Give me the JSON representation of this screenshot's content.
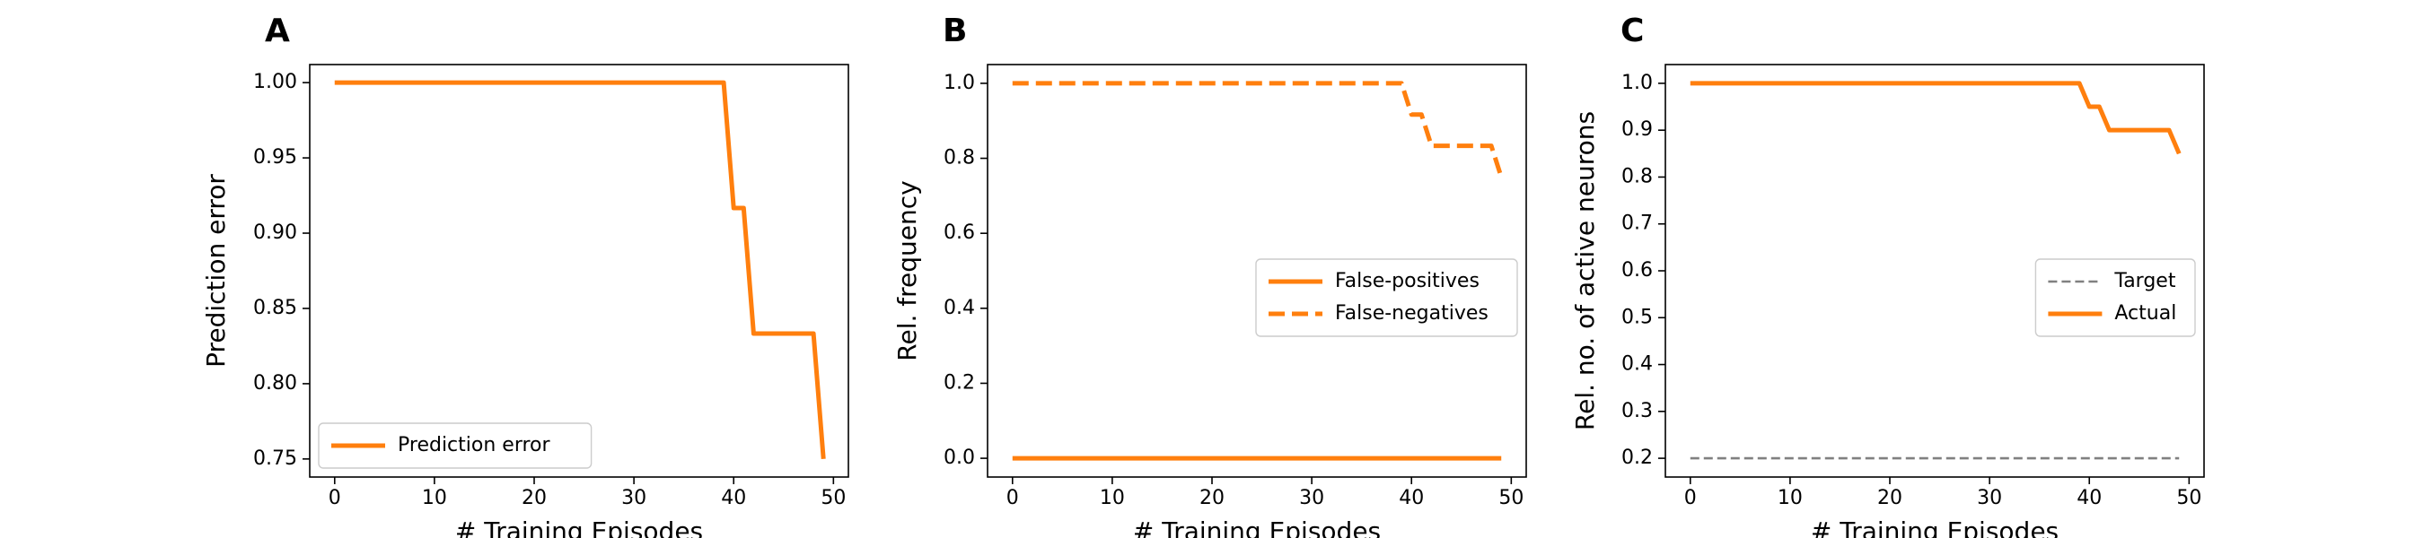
{
  "chart_data": [
    {
      "type": "line",
      "panel_letter": "A",
      "xlabel": "# Training Episodes",
      "ylabel": "Prediction error",
      "xlim": [
        -2.5,
        51.5
      ],
      "ylim": [
        0.738,
        1.012
      ],
      "x_ticks": [
        0,
        10,
        20,
        30,
        40,
        50
      ],
      "y_ticks": [
        0.75,
        0.8,
        0.85,
        0.9,
        0.95,
        1.0
      ],
      "y_tick_labels": [
        "0.75",
        "0.80",
        "0.85",
        "0.90",
        "0.95",
        "1.00"
      ],
      "legend_position": "lower-left",
      "series": [
        {
          "name": "Prediction error",
          "color": "#ff7f0e",
          "style": "solid",
          "points": [
            [
              0,
              1.0
            ],
            [
              39,
              1.0
            ],
            [
              40,
              0.9167
            ],
            [
              41,
              0.9167
            ],
            [
              42,
              0.8333
            ],
            [
              48,
              0.8333
            ],
            [
              49,
              0.75
            ]
          ]
        }
      ]
    },
    {
      "type": "line",
      "panel_letter": "B",
      "xlabel": "# Training Episodes",
      "ylabel": "Rel. frequency",
      "xlim": [
        -2.5,
        51.5
      ],
      "ylim": [
        -0.05,
        1.05
      ],
      "x_ticks": [
        0,
        10,
        20,
        30,
        40,
        50
      ],
      "y_ticks": [
        0.0,
        0.2,
        0.4,
        0.6,
        0.8,
        1.0
      ],
      "y_tick_labels": [
        "0.0",
        "0.2",
        "0.4",
        "0.6",
        "0.8",
        "1.0"
      ],
      "legend_position": "center-right",
      "series": [
        {
          "name": "False-positives",
          "color": "#ff7f0e",
          "style": "solid",
          "points": [
            [
              0,
              0.0
            ],
            [
              49,
              0.0
            ]
          ]
        },
        {
          "name": "False-negatives",
          "color": "#ff7f0e",
          "style": "dashed",
          "points": [
            [
              0,
              1.0
            ],
            [
              39,
              1.0
            ],
            [
              40,
              0.9167
            ],
            [
              41,
              0.9167
            ],
            [
              42,
              0.8333
            ],
            [
              48,
              0.8333
            ],
            [
              49,
              0.75
            ]
          ]
        }
      ]
    },
    {
      "type": "line",
      "panel_letter": "C",
      "xlabel": "# Training Episodes",
      "ylabel": "Rel. no. of active neurons",
      "xlim": [
        -2.5,
        51.5
      ],
      "ylim": [
        0.16,
        1.04
      ],
      "x_ticks": [
        0,
        10,
        20,
        30,
        40,
        50
      ],
      "y_ticks": [
        0.2,
        0.3,
        0.4,
        0.5,
        0.6,
        0.7,
        0.8,
        0.9,
        1.0
      ],
      "y_tick_labels": [
        "0.2",
        "0.3",
        "0.4",
        "0.5",
        "0.6",
        "0.7",
        "0.8",
        "0.9",
        "1.0"
      ],
      "legend_position": "center-right",
      "series": [
        {
          "name": "Target",
          "color": "#808080",
          "style": "dashed-thin",
          "points": [
            [
              0,
              0.2
            ],
            [
              49,
              0.2
            ]
          ]
        },
        {
          "name": "Actual",
          "color": "#ff7f0e",
          "style": "solid",
          "points": [
            [
              0,
              1.0
            ],
            [
              39,
              1.0
            ],
            [
              40,
              0.95
            ],
            [
              41,
              0.95
            ],
            [
              42,
              0.9
            ],
            [
              48,
              0.9
            ],
            [
              49,
              0.85
            ]
          ]
        }
      ]
    }
  ]
}
